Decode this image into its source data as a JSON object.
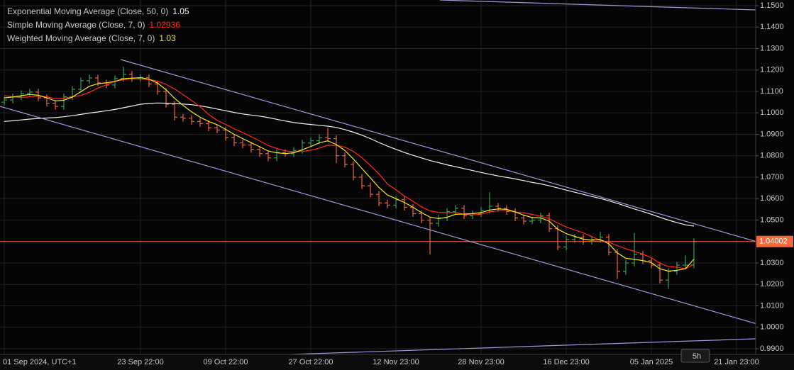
{
  "chart_data": {
    "type": "ohlc",
    "open": [
      1.105,
      1.106,
      1.1075,
      1.109,
      1.1097,
      1.107,
      1.1045,
      1.103,
      1.1075,
      1.111,
      1.115,
      1.1163,
      1.114,
      1.113,
      1.116,
      1.118,
      1.116,
      1.1165,
      1.1135,
      1.11,
      1.104,
      1.098,
      1.0975,
      1.096,
      1.095,
      1.093,
      1.092,
      1.0885,
      1.086,
      1.085,
      1.083,
      1.081,
      1.079,
      1.0815,
      1.081,
      1.0825,
      1.086,
      1.087,
      1.0885,
      1.088,
      1.08,
      1.076,
      1.07,
      1.066,
      1.062,
      1.058,
      1.057,
      1.0595,
      1.056,
      1.053,
      1.05,
      1.0485,
      1.051,
      1.054,
      1.0555,
      1.052,
      1.053,
      1.0545,
      1.0565,
      1.0555,
      1.054,
      1.051,
      1.0495,
      1.05,
      1.052,
      1.046,
      1.0375,
      1.041,
      1.042,
      1.04,
      1.041,
      1.042,
      1.035,
      1.026,
      1.03,
      1.034,
      1.031,
      1.029,
      1.022,
      1.026,
      1.029,
      1.029
    ],
    "high": [
      1.1075,
      1.109,
      1.1105,
      1.1112,
      1.1112,
      1.1085,
      1.106,
      1.109,
      1.1125,
      1.1165,
      1.1178,
      1.1178,
      1.1155,
      1.1175,
      1.1215,
      1.1195,
      1.118,
      1.118,
      1.115,
      1.1115,
      1.1055,
      1.0995,
      1.099,
      1.0975,
      1.0965,
      1.0945,
      1.0935,
      1.09,
      1.0875,
      1.0865,
      1.0845,
      1.0825,
      1.083,
      1.083,
      1.084,
      1.0875,
      1.0885,
      1.09,
      1.093,
      1.0895,
      1.0815,
      1.0775,
      1.0715,
      1.0675,
      1.0635,
      1.0595,
      1.061,
      1.061,
      1.0575,
      1.0545,
      1.0515,
      1.0525,
      1.0555,
      1.057,
      1.057,
      1.0545,
      1.056,
      1.063,
      1.058,
      1.057,
      1.0555,
      1.0525,
      1.0515,
      1.0535,
      1.0535,
      1.0475,
      1.0425,
      1.0435,
      1.0435,
      1.0425,
      1.0445,
      1.0435,
      1.0365,
      1.0315,
      1.044,
      1.0355,
      1.0325,
      1.0305,
      1.0275,
      1.0305,
      1.0335,
      1.0415
    ],
    "low": [
      1.1035,
      1.1045,
      1.106,
      1.1075,
      1.1055,
      1.103,
      1.1015,
      1.1015,
      1.106,
      1.1095,
      1.1135,
      1.1125,
      1.1115,
      1.1115,
      1.1145,
      1.1145,
      1.1145,
      1.112,
      1.1085,
      1.1025,
      1.0965,
      1.096,
      1.0945,
      1.0935,
      1.0915,
      1.0905,
      1.087,
      1.0845,
      1.0835,
      1.0815,
      1.0795,
      1.0775,
      1.0775,
      1.0795,
      1.0795,
      1.081,
      1.0845,
      1.0855,
      1.0865,
      1.0765,
      1.0745,
      1.0685,
      1.0645,
      1.0605,
      1.0565,
      1.0555,
      1.0555,
      1.0545,
      1.0515,
      1.0485,
      1.034,
      1.047,
      1.0495,
      1.0525,
      1.0505,
      1.0505,
      1.0515,
      1.053,
      1.054,
      1.0525,
      1.0495,
      1.048,
      1.048,
      1.0485,
      1.0445,
      1.036,
      1.036,
      1.0395,
      1.0385,
      1.0385,
      1.0395,
      1.0335,
      1.0225,
      1.0245,
      1.0285,
      1.0295,
      1.0275,
      1.0205,
      1.018,
      1.0245,
      1.027,
      1.0275
    ],
    "close": [
      1.106,
      1.1075,
      1.109,
      1.1097,
      1.107,
      1.1045,
      1.103,
      1.1075,
      1.111,
      1.115,
      1.1163,
      1.114,
      1.113,
      1.116,
      1.118,
      1.116,
      1.1165,
      1.1135,
      1.11,
      1.104,
      1.098,
      1.0975,
      1.096,
      1.095,
      1.093,
      1.092,
      1.0885,
      1.086,
      1.085,
      1.083,
      1.081,
      1.079,
      1.0815,
      1.081,
      1.0825,
      1.086,
      1.087,
      1.0885,
      1.088,
      1.08,
      1.076,
      1.07,
      1.066,
      1.062,
      1.058,
      1.057,
      1.0595,
      1.056,
      1.053,
      1.05,
      1.0485,
      1.051,
      1.054,
      1.0555,
      1.052,
      1.053,
      1.0545,
      1.0565,
      1.0555,
      1.054,
      1.051,
      1.0495,
      1.05,
      1.052,
      1.046,
      1.0375,
      1.041,
      1.042,
      1.04,
      1.041,
      1.042,
      1.035,
      1.026,
      1.03,
      1.034,
      1.031,
      1.029,
      1.022,
      1.026,
      1.029,
      1.029,
      1.04002
    ],
    "up_color": "#2f9e55",
    "down_color": "#e8643a",
    "series": [
      {
        "name": "Exponential Moving Average (Close, 50, 0)",
        "legend_value": "1.05",
        "color": "#f2f2f2",
        "values": [
          1.096,
          1.0963,
          1.0967,
          1.0971,
          1.0974,
          1.0976,
          1.0978,
          1.0982,
          1.0987,
          1.0993,
          1.0999,
          1.1004,
          1.101,
          1.1016,
          1.1024,
          1.1032,
          1.104,
          1.1044,
          1.1046,
          1.1045,
          1.1043,
          1.1041,
          1.1038,
          1.1033,
          1.1026,
          1.1018,
          1.101,
          1.1002,
          1.0995,
          1.099,
          1.0985,
          1.0978,
          1.097,
          1.0962,
          1.0955,
          1.095,
          1.0946,
          1.0942,
          1.0938,
          1.0932,
          1.0922,
          1.091,
          1.0896,
          1.088,
          1.0862,
          1.0845,
          1.083,
          1.0815,
          1.0802,
          1.079,
          1.0778,
          1.0768,
          1.0758,
          1.0749,
          1.074,
          1.0731,
          1.0722,
          1.0714,
          1.0706,
          1.0699,
          1.0692,
          1.0684,
          1.0676,
          1.0669,
          1.066,
          1.065,
          1.064,
          1.063,
          1.062,
          1.061,
          1.0601,
          1.059,
          1.0578,
          1.0565,
          1.0552,
          1.054,
          1.0527,
          1.0513,
          1.05,
          1.0488,
          1.0478,
          1.0472
        ]
      },
      {
        "name": "Simple Moving Average (Close, 7, 0)",
        "legend_value": "1.02936",
        "color": "#ff2a1a",
        "values": [
          1.108,
          1.1075,
          1.1072,
          1.1075,
          1.1078,
          1.1075,
          1.1066,
          1.1069,
          1.1074,
          1.1081,
          1.1096,
          1.1116,
          1.1131,
          1.1147,
          1.1155,
          1.1159,
          1.1157,
          1.1156,
          1.1148,
          1.1133,
          1.1112,
          1.1085,
          1.1058,
          1.1029,
          1.0993,
          1.0965,
          1.0946,
          1.0926,
          1.0908,
          1.0889,
          1.0869,
          1.0848,
          1.0834,
          1.0823,
          1.0819,
          1.082,
          1.0826,
          1.0836,
          1.0849,
          1.0848,
          1.084,
          1.082,
          1.0791,
          1.0755,
          1.0716,
          1.0669,
          1.0641,
          1.0612,
          1.0588,
          1.0562,
          1.0543,
          1.0536,
          1.0535,
          1.0536,
          1.0527,
          1.0524,
          1.0527,
          1.0538,
          1.0544,
          1.0544,
          1.0538,
          1.0534,
          1.0526,
          1.0518,
          1.0507,
          1.0486,
          1.0468,
          1.0454,
          1.0441,
          1.0423,
          1.0405,
          1.0398,
          1.0381,
          1.0366,
          1.0354,
          1.0341,
          1.0324,
          1.0299,
          1.0283,
          1.0281,
          1.0273,
          1.02936
        ]
      },
      {
        "name": "Weighted Moving Average (Close, 7, 0)",
        "legend_value": "1.03",
        "color": "#f5e71e",
        "values": [
          1.107,
          1.1074,
          1.108,
          1.1086,
          1.1082,
          1.107,
          1.1056,
          1.1059,
          1.1074,
          1.1099,
          1.1124,
          1.1136,
          1.114,
          1.1147,
          1.1159,
          1.1162,
          1.1164,
          1.1157,
          1.1139,
          1.1108,
          1.1068,
          1.1035,
          1.1005,
          1.098,
          1.096,
          1.0945,
          1.0923,
          1.09,
          1.088,
          1.0861,
          1.0842,
          1.0822,
          1.0814,
          1.081,
          1.0814,
          1.0828,
          1.0843,
          1.086,
          1.087,
          1.0852,
          1.0825,
          1.0785,
          1.0741,
          1.0697,
          1.0652,
          1.0617,
          1.06,
          1.0582,
          1.056,
          1.0535,
          1.0514,
          1.0507,
          1.0513,
          1.0527,
          1.0528,
          1.053,
          1.0535,
          1.0547,
          1.0552,
          1.055,
          1.0538,
          1.0523,
          1.0512,
          1.051,
          1.0495,
          1.0458,
          1.0437,
          1.0424,
          1.0411,
          1.0406,
          1.0409,
          1.039,
          1.0347,
          1.0322,
          1.0317,
          1.0311,
          1.0302,
          1.0273,
          1.0262,
          1.0266,
          1.0273,
          1.0318
        ]
      }
    ],
    "current_price": {
      "value": 1.04002,
      "label": "1.04002"
    },
    "current_price_color": "#f06a3c",
    "xlim": [
      -0.5,
      88.25
    ],
    "xticks": [
      {
        "value": 0,
        "label": "01 Sep 2024, UTC+1"
      },
      {
        "value": 16,
        "label": "23 Sep 22:00"
      },
      {
        "value": 26,
        "label": "09 Oct 22:00"
      },
      {
        "value": 36,
        "label": "27 Oct 22:00"
      },
      {
        "value": 46,
        "label": "12 Nov 23:00"
      },
      {
        "value": 56,
        "label": "28 Nov 23:00"
      },
      {
        "value": 66,
        "label": "16 Dec 23:00"
      },
      {
        "value": 76,
        "label": "05 Jan 2025"
      },
      {
        "value": 86,
        "label": "21 Jan 23:00"
      }
    ],
    "ylim": [
      0.98736,
      1.15264
    ],
    "yticks": [
      {
        "value": 1.15,
        "label": "1.1500"
      },
      {
        "value": 1.14,
        "label": "1.1400"
      },
      {
        "value": 1.13,
        "label": "1.1300"
      },
      {
        "value": 1.12,
        "label": "1.1200"
      },
      {
        "value": 1.11,
        "label": "1.1100"
      },
      {
        "value": 1.1,
        "label": "1.1000"
      },
      {
        "value": 1.09,
        "label": "1.0900"
      },
      {
        "value": 1.08,
        "label": "1.0800"
      },
      {
        "value": 1.07,
        "label": "1.0700"
      },
      {
        "value": 1.06,
        "label": "1.0600"
      },
      {
        "value": 1.05,
        "label": "1.0500"
      },
      {
        "value": 1.04,
        "label": "1.0400"
      },
      {
        "value": 1.03,
        "label": "1.0300"
      },
      {
        "value": 1.02,
        "label": "1.0200"
      },
      {
        "value": 1.01,
        "label": "1.0100"
      },
      {
        "value": 1.0,
        "label": "1.0000"
      },
      {
        "value": 0.99,
        "label": "0.9900"
      }
    ],
    "grid": true,
    "timeframe": "5h"
  }
}
